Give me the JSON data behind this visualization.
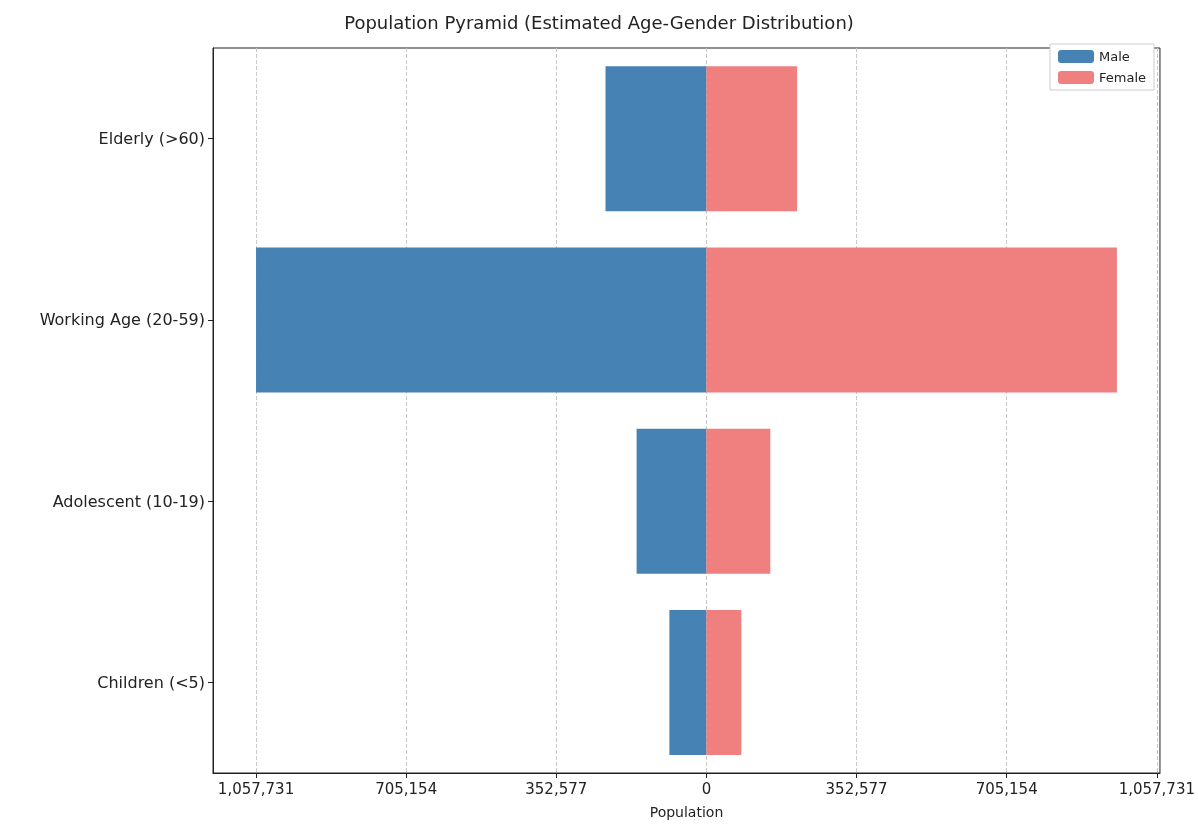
{
  "chart_data": {
    "type": "bar",
    "orientation": "horizontal",
    "title": "Population Pyramid (Estimated Age-Gender Distribution)",
    "xlabel": "Population",
    "categories": [
      "Elderly (>60)",
      "Working Age (20-59)",
      "Adolescent (10-19)",
      "Children (<5)"
    ],
    "series": [
      {
        "name": "Male",
        "color": "#4682b4",
        "values": [
          -237000,
          -1057731,
          -164000,
          -87000
        ]
      },
      {
        "name": "Female",
        "color": "#f08080",
        "values": [
          213000,
          964000,
          150000,
          82000
        ]
      }
    ],
    "xlim": [
      -1158800,
      1065100
    ],
    "xticks": [
      {
        "value": -1057731,
        "label": "1,057,731"
      },
      {
        "value": -705154,
        "label": "705,154"
      },
      {
        "value": -352577,
        "label": "352,577"
      },
      0,
      {
        "value": 352577,
        "label": "352,577"
      },
      {
        "value": 705154,
        "label": "705,154"
      },
      {
        "value": 1057731,
        "label": "1,057,731"
      }
    ],
    "stacked": true,
    "grid": "x",
    "line_style": "dashed",
    "legend": "top right"
  }
}
